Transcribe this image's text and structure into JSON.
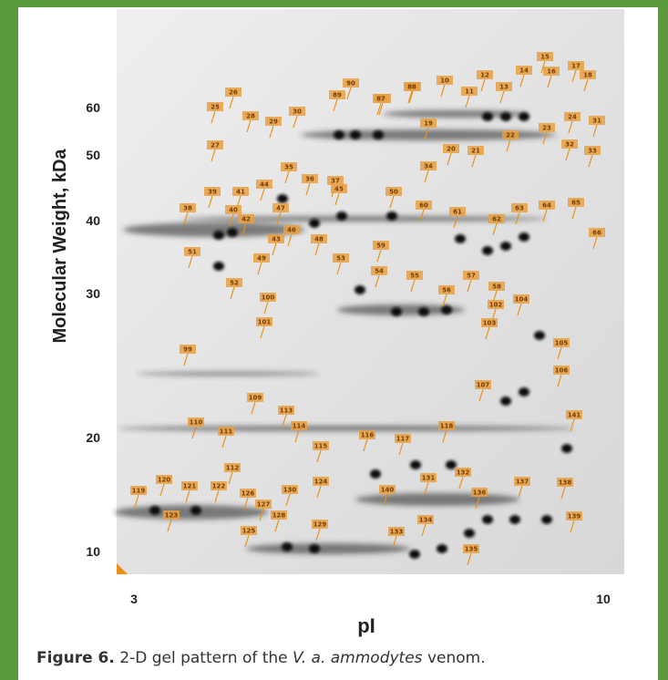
{
  "figure": {
    "y_axis_label": "Molecular Weight, kDa",
    "y_ticks": [
      60,
      50,
      40,
      30,
      20,
      10
    ],
    "x_axis_label": "pI",
    "x_ticks": [
      3,
      10
    ],
    "spot_labels": [
      "15",
      "16",
      "17",
      "18",
      "14",
      "12",
      "13",
      "10",
      "11",
      "9",
      "8",
      "26",
      "25",
      "28",
      "29",
      "27",
      "30",
      "89",
      "90",
      "87",
      "88",
      "19",
      "20",
      "21",
      "22",
      "23",
      "24",
      "31",
      "32",
      "33",
      "34",
      "35",
      "36",
      "37",
      "38",
      "39",
      "41",
      "44",
      "40",
      "42",
      "43",
      "47",
      "46",
      "48",
      "45",
      "50",
      "51",
      "49",
      "52",
      "53",
      "54",
      "59",
      "55",
      "56",
      "57",
      "58",
      "60",
      "61",
      "62",
      "63",
      "64",
      "65",
      "66",
      "100",
      "101",
      "102",
      "103",
      "104",
      "105",
      "106",
      "107",
      "99",
      "109",
      "110",
      "111",
      "112",
      "113",
      "114",
      "115",
      "116",
      "117",
      "118",
      "119",
      "120",
      "121",
      "122",
      "123",
      "124",
      "125",
      "126",
      "127",
      "128",
      "129",
      "130",
      "131",
      "132",
      "133",
      "134",
      "135",
      "136",
      "137",
      "138",
      "139",
      "140",
      "141"
    ]
  },
  "caption": {
    "label": "Figure 6.",
    "text_before": "2-D gel pattern of the",
    "species": "V. a. ammodytes",
    "text_after": "venom."
  }
}
